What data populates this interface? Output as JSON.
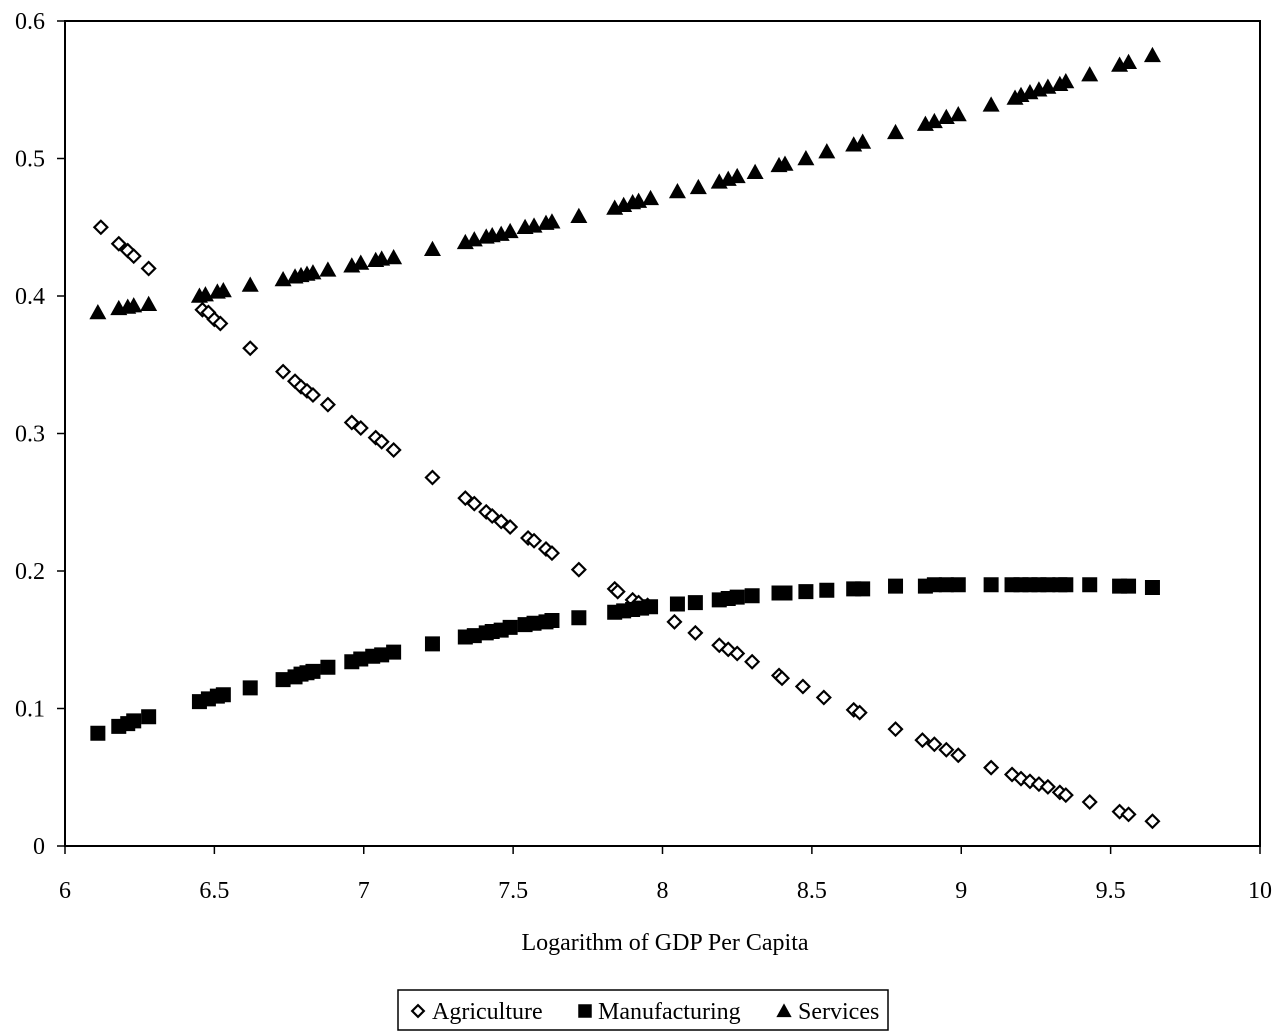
{
  "chart_data": {
    "type": "scatter",
    "title": "",
    "xlabel": "Logarithm of GDP Per Capita",
    "ylabel": "",
    "xlim": [
      6,
      10
    ],
    "ylim": [
      0,
      0.6
    ],
    "x_ticks": [
      "6",
      "6.5",
      "7",
      "7.5",
      "8",
      "8.5",
      "9",
      "9.5",
      "10"
    ],
    "y_ticks": [
      "0",
      "0.1",
      "0.2",
      "0.3",
      "0.4",
      "0.5",
      "0.6"
    ],
    "grid": false,
    "legend_position": "bottom-center",
    "series": [
      {
        "name": "Agriculture",
        "marker": "diamond-open",
        "color": "#000000",
        "points": [
          [
            6.12,
            0.45
          ],
          [
            6.18,
            0.438
          ],
          [
            6.21,
            0.433
          ],
          [
            6.23,
            0.429
          ],
          [
            6.28,
            0.42
          ],
          [
            6.46,
            0.39
          ],
          [
            6.48,
            0.388
          ],
          [
            6.5,
            0.383
          ],
          [
            6.52,
            0.38
          ],
          [
            6.62,
            0.362
          ],
          [
            6.73,
            0.345
          ],
          [
            6.77,
            0.338
          ],
          [
            6.79,
            0.334
          ],
          [
            6.81,
            0.331
          ],
          [
            6.83,
            0.328
          ],
          [
            6.88,
            0.321
          ],
          [
            6.96,
            0.308
          ],
          [
            6.99,
            0.304
          ],
          [
            7.04,
            0.297
          ],
          [
            7.06,
            0.294
          ],
          [
            7.1,
            0.288
          ],
          [
            7.23,
            0.268
          ],
          [
            7.34,
            0.253
          ],
          [
            7.37,
            0.249
          ],
          [
            7.41,
            0.243
          ],
          [
            7.43,
            0.24
          ],
          [
            7.46,
            0.236
          ],
          [
            7.49,
            0.232
          ],
          [
            7.55,
            0.224
          ],
          [
            7.57,
            0.222
          ],
          [
            7.61,
            0.216
          ],
          [
            7.63,
            0.213
          ],
          [
            7.72,
            0.201
          ],
          [
            7.84,
            0.187
          ],
          [
            7.85,
            0.185
          ],
          [
            7.9,
            0.179
          ],
          [
            7.92,
            0.177
          ],
          [
            7.95,
            0.175
          ],
          [
            8.04,
            0.163
          ],
          [
            8.11,
            0.155
          ],
          [
            8.19,
            0.146
          ],
          [
            8.22,
            0.143
          ],
          [
            8.25,
            0.14
          ],
          [
            8.3,
            0.134
          ],
          [
            8.39,
            0.124
          ],
          [
            8.4,
            0.122
          ],
          [
            8.47,
            0.116
          ],
          [
            8.54,
            0.108
          ],
          [
            8.64,
            0.099
          ],
          [
            8.66,
            0.097
          ],
          [
            8.78,
            0.085
          ],
          [
            8.87,
            0.077
          ],
          [
            8.91,
            0.074
          ],
          [
            8.95,
            0.07
          ],
          [
            8.99,
            0.066
          ],
          [
            9.1,
            0.057
          ],
          [
            9.17,
            0.052
          ],
          [
            9.2,
            0.049
          ],
          [
            9.23,
            0.047
          ],
          [
            9.26,
            0.045
          ],
          [
            9.29,
            0.043
          ],
          [
            9.33,
            0.039
          ],
          [
            9.35,
            0.037
          ],
          [
            9.43,
            0.032
          ],
          [
            9.53,
            0.025
          ],
          [
            9.56,
            0.023
          ],
          [
            9.64,
            0.018
          ]
        ]
      },
      {
        "name": "Manufacturing",
        "marker": "square-filled",
        "color": "#000000",
        "points": [
          [
            6.11,
            0.082
          ],
          [
            6.18,
            0.087
          ],
          [
            6.21,
            0.089
          ],
          [
            6.23,
            0.091
          ],
          [
            6.28,
            0.094
          ],
          [
            6.45,
            0.105
          ],
          [
            6.48,
            0.107
          ],
          [
            6.51,
            0.109
          ],
          [
            6.53,
            0.11
          ],
          [
            6.62,
            0.115
          ],
          [
            6.73,
            0.121
          ],
          [
            6.77,
            0.123
          ],
          [
            6.79,
            0.125
          ],
          [
            6.81,
            0.126
          ],
          [
            6.83,
            0.127
          ],
          [
            6.88,
            0.13
          ],
          [
            6.96,
            0.134
          ],
          [
            6.99,
            0.136
          ],
          [
            7.03,
            0.138
          ],
          [
            7.06,
            0.139
          ],
          [
            7.1,
            0.141
          ],
          [
            7.23,
            0.147
          ],
          [
            7.34,
            0.152
          ],
          [
            7.37,
            0.153
          ],
          [
            7.41,
            0.155
          ],
          [
            7.43,
            0.156
          ],
          [
            7.46,
            0.157
          ],
          [
            7.49,
            0.159
          ],
          [
            7.54,
            0.161
          ],
          [
            7.57,
            0.162
          ],
          [
            7.61,
            0.163
          ],
          [
            7.63,
            0.164
          ],
          [
            7.72,
            0.166
          ],
          [
            7.84,
            0.17
          ],
          [
            7.87,
            0.171
          ],
          [
            7.9,
            0.172
          ],
          [
            7.93,
            0.173
          ],
          [
            7.96,
            0.174
          ],
          [
            8.05,
            0.176
          ],
          [
            8.11,
            0.177
          ],
          [
            8.19,
            0.179
          ],
          [
            8.22,
            0.18
          ],
          [
            8.25,
            0.181
          ],
          [
            8.3,
            0.182
          ],
          [
            8.39,
            0.184
          ],
          [
            8.41,
            0.184
          ],
          [
            8.48,
            0.185
          ],
          [
            8.55,
            0.186
          ],
          [
            8.64,
            0.187
          ],
          [
            8.67,
            0.187
          ],
          [
            8.78,
            0.189
          ],
          [
            8.88,
            0.189
          ],
          [
            8.91,
            0.19
          ],
          [
            8.95,
            0.19
          ],
          [
            8.99,
            0.19
          ],
          [
            9.1,
            0.19
          ],
          [
            9.17,
            0.19
          ],
          [
            9.2,
            0.19
          ],
          [
            9.23,
            0.19
          ],
          [
            9.26,
            0.19
          ],
          [
            9.29,
            0.19
          ],
          [
            9.33,
            0.19
          ],
          [
            9.35,
            0.19
          ],
          [
            9.43,
            0.19
          ],
          [
            9.53,
            0.189
          ],
          [
            9.56,
            0.189
          ],
          [
            9.64,
            0.188
          ]
        ]
      },
      {
        "name": "Services",
        "marker": "triangle-filled",
        "color": "#000000",
        "points": [
          [
            6.11,
            0.388
          ],
          [
            6.18,
            0.391
          ],
          [
            6.21,
            0.392
          ],
          [
            6.23,
            0.393
          ],
          [
            6.28,
            0.394
          ],
          [
            6.45,
            0.4
          ],
          [
            6.47,
            0.401
          ],
          [
            6.51,
            0.403
          ],
          [
            6.53,
            0.404
          ],
          [
            6.62,
            0.408
          ],
          [
            6.73,
            0.412
          ],
          [
            6.77,
            0.414
          ],
          [
            6.79,
            0.415
          ],
          [
            6.81,
            0.416
          ],
          [
            6.83,
            0.417
          ],
          [
            6.88,
            0.419
          ],
          [
            6.96,
            0.422
          ],
          [
            6.99,
            0.424
          ],
          [
            7.04,
            0.426
          ],
          [
            7.06,
            0.427
          ],
          [
            7.1,
            0.428
          ],
          [
            7.23,
            0.434
          ],
          [
            7.34,
            0.439
          ],
          [
            7.37,
            0.441
          ],
          [
            7.41,
            0.443
          ],
          [
            7.43,
            0.444
          ],
          [
            7.46,
            0.445
          ],
          [
            7.49,
            0.447
          ],
          [
            7.54,
            0.45
          ],
          [
            7.57,
            0.451
          ],
          [
            7.61,
            0.453
          ],
          [
            7.63,
            0.454
          ],
          [
            7.72,
            0.458
          ],
          [
            7.84,
            0.464
          ],
          [
            7.87,
            0.466
          ],
          [
            7.9,
            0.468
          ],
          [
            7.92,
            0.469
          ],
          [
            7.96,
            0.471
          ],
          [
            8.05,
            0.476
          ],
          [
            8.12,
            0.479
          ],
          [
            8.19,
            0.483
          ],
          [
            8.22,
            0.485
          ],
          [
            8.25,
            0.487
          ],
          [
            8.31,
            0.49
          ],
          [
            8.39,
            0.495
          ],
          [
            8.41,
            0.496
          ],
          [
            8.48,
            0.5
          ],
          [
            8.55,
            0.505
          ],
          [
            8.64,
            0.51
          ],
          [
            8.67,
            0.512
          ],
          [
            8.78,
            0.519
          ],
          [
            8.88,
            0.525
          ],
          [
            8.91,
            0.527
          ],
          [
            8.95,
            0.53
          ],
          [
            8.99,
            0.532
          ],
          [
            9.1,
            0.539
          ],
          [
            9.18,
            0.544
          ],
          [
            9.2,
            0.546
          ],
          [
            9.23,
            0.548
          ],
          [
            9.26,
            0.55
          ],
          [
            9.29,
            0.552
          ],
          [
            9.33,
            0.554
          ],
          [
            9.35,
            0.556
          ],
          [
            9.43,
            0.561
          ],
          [
            9.53,
            0.568
          ],
          [
            9.56,
            0.57
          ],
          [
            9.64,
            0.575
          ]
        ]
      }
    ]
  }
}
